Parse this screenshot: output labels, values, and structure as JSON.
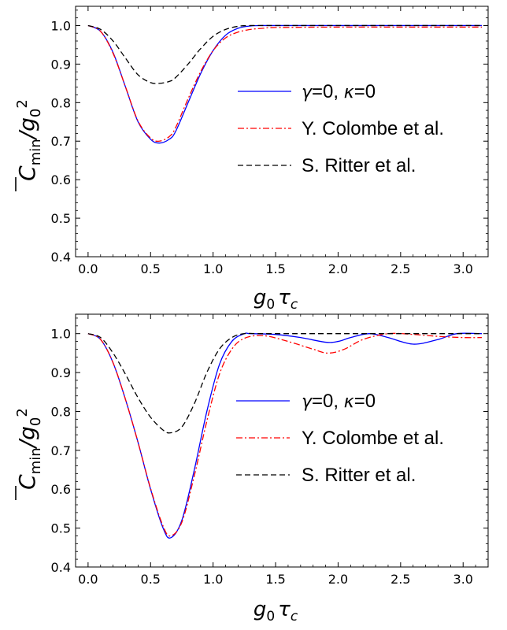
{
  "chart_data": [
    {
      "type": "line",
      "xlabel": {
        "base": "g",
        "sub0": "0",
        "tau": "τ",
        "subc": "c"
      },
      "ylabel": {
        "base": "C",
        "submin": "min",
        "slash": "/g",
        "sub0": "0",
        "sup2": "2"
      },
      "xlim": [
        -0.1,
        3.2
      ],
      "ylim": [
        0.4,
        1.05
      ],
      "xticks": [
        0.0,
        0.5,
        1.0,
        1.5,
        2.0,
        2.5,
        3.0
      ],
      "xtick_labels": [
        "0.0",
        "0.5",
        "1.0",
        "1.5",
        "2.0",
        "2.5",
        "3.0"
      ],
      "yticks": [
        0.4,
        0.5,
        0.6,
        0.7,
        0.8,
        0.9,
        1.0
      ],
      "ytick_labels": [
        "0.4",
        "0.5",
        "0.6",
        "0.7",
        "0.8",
        "0.9",
        "1.0"
      ],
      "grid": false,
      "legend_position": "right",
      "series": [
        {
          "name": "γ=0, κ=0",
          "legend_parts": {
            "g": "γ",
            "eq1": "=0, ",
            "k": "κ",
            "eq2": "=0"
          },
          "color": "#0000ff",
          "dash": "solid",
          "x": [
            0.0,
            0.1,
            0.2,
            0.3,
            0.4,
            0.5,
            0.57,
            0.65,
            0.7,
            0.8,
            0.9,
            1.0,
            1.1,
            1.2,
            1.3,
            1.4,
            1.5,
            2.0,
            2.5,
            3.15
          ],
          "y": [
            1.0,
            0.985,
            0.93,
            0.84,
            0.75,
            0.705,
            0.695,
            0.705,
            0.725,
            0.8,
            0.875,
            0.935,
            0.975,
            0.993,
            0.999,
            1.0,
            1.0,
            1.0,
            1.0,
            1.0
          ]
        },
        {
          "name": "Y. Colombe et al.",
          "color": "#ff0000",
          "dash": "dashdot",
          "x": [
            0.0,
            0.1,
            0.2,
            0.3,
            0.4,
            0.5,
            0.57,
            0.65,
            0.7,
            0.8,
            0.9,
            1.0,
            1.1,
            1.2,
            1.3,
            1.4,
            1.5,
            2.0,
            2.5,
            3.15
          ],
          "y": [
            1.0,
            0.985,
            0.928,
            0.84,
            0.752,
            0.708,
            0.7,
            0.712,
            0.735,
            0.81,
            0.88,
            0.935,
            0.968,
            0.983,
            0.99,
            0.993,
            0.995,
            0.996,
            0.996,
            0.996
          ]
        },
        {
          "name": "S. Ritter et al.",
          "color": "#000000",
          "dash": "dashed",
          "x": [
            0.0,
            0.1,
            0.2,
            0.3,
            0.4,
            0.5,
            0.57,
            0.65,
            0.7,
            0.8,
            0.9,
            1.0,
            1.1,
            1.2,
            1.3,
            1.5,
            2.0,
            3.15
          ],
          "y": [
            1.0,
            0.99,
            0.96,
            0.915,
            0.872,
            0.852,
            0.85,
            0.855,
            0.865,
            0.9,
            0.94,
            0.972,
            0.99,
            0.998,
            1.0,
            1.0,
            1.0,
            1.0
          ]
        }
      ]
    },
    {
      "type": "line",
      "xlabel": {
        "base": "g",
        "sub0": "0",
        "tau": "τ",
        "subc": "c"
      },
      "ylabel": {
        "base": "C",
        "submin": "min",
        "slash": "/g",
        "sub0": "0",
        "sup2": "2"
      },
      "xlim": [
        -0.1,
        3.2
      ],
      "ylim": [
        0.4,
        1.05
      ],
      "xticks": [
        0.0,
        0.5,
        1.0,
        1.5,
        2.0,
        2.5,
        3.0
      ],
      "xtick_labels": [
        "0.0",
        "0.5",
        "1.0",
        "1.5",
        "2.0",
        "2.5",
        "3.0"
      ],
      "yticks": [
        0.4,
        0.5,
        0.6,
        0.7,
        0.8,
        0.9,
        1.0
      ],
      "ytick_labels": [
        "0.4",
        "0.5",
        "0.6",
        "0.7",
        "0.8",
        "0.9",
        "1.0"
      ],
      "grid": false,
      "legend_position": "right",
      "series": [
        {
          "name": "γ=0, κ=0",
          "legend_parts": {
            "g": "γ",
            "eq1": "=0, ",
            "k": "κ",
            "eq2": "=0"
          },
          "color": "#0000ff",
          "dash": "solid",
          "x": [
            0.0,
            0.1,
            0.2,
            0.3,
            0.4,
            0.5,
            0.6,
            0.66,
            0.75,
            0.85,
            0.95,
            1.05,
            1.15,
            1.25,
            1.3,
            1.5,
            1.7,
            1.9,
            2.0,
            2.1,
            2.25,
            2.4,
            2.6,
            2.8,
            2.95,
            3.15
          ],
          "y": [
            1.0,
            0.985,
            0.925,
            0.83,
            0.72,
            0.6,
            0.5,
            0.475,
            0.52,
            0.65,
            0.8,
            0.92,
            0.98,
            1.0,
            1.0,
            0.998,
            0.99,
            0.978,
            0.98,
            0.99,
            1.0,
            0.99,
            0.973,
            0.985,
            1.0,
            1.0
          ]
        },
        {
          "name": "Y. Colombe et al.",
          "color": "#ff0000",
          "dash": "dashdot",
          "x": [
            0.0,
            0.1,
            0.2,
            0.3,
            0.4,
            0.5,
            0.6,
            0.66,
            0.75,
            0.85,
            0.95,
            1.05,
            1.15,
            1.25,
            1.4,
            1.6,
            1.8,
            1.92,
            2.05,
            2.2,
            2.4,
            2.6,
            2.8,
            3.0,
            3.15
          ],
          "y": [
            1.0,
            0.985,
            0.925,
            0.83,
            0.72,
            0.602,
            0.505,
            0.48,
            0.515,
            0.635,
            0.775,
            0.895,
            0.96,
            0.988,
            0.995,
            0.98,
            0.96,
            0.95,
            0.96,
            0.985,
            1.0,
            0.998,
            0.993,
            0.99,
            0.99
          ]
        },
        {
          "name": "S. Ritter et al.",
          "color": "#000000",
          "dash": "dashed",
          "x": [
            0.0,
            0.1,
            0.2,
            0.3,
            0.4,
            0.5,
            0.6,
            0.66,
            0.75,
            0.85,
            0.95,
            1.05,
            1.15,
            1.25,
            1.4,
            2.0,
            3.15
          ],
          "y": [
            1.0,
            0.99,
            0.95,
            0.895,
            0.835,
            0.785,
            0.752,
            0.745,
            0.76,
            0.82,
            0.9,
            0.96,
            0.99,
            1.0,
            1.0,
            1.0,
            1.0
          ]
        }
      ]
    }
  ]
}
